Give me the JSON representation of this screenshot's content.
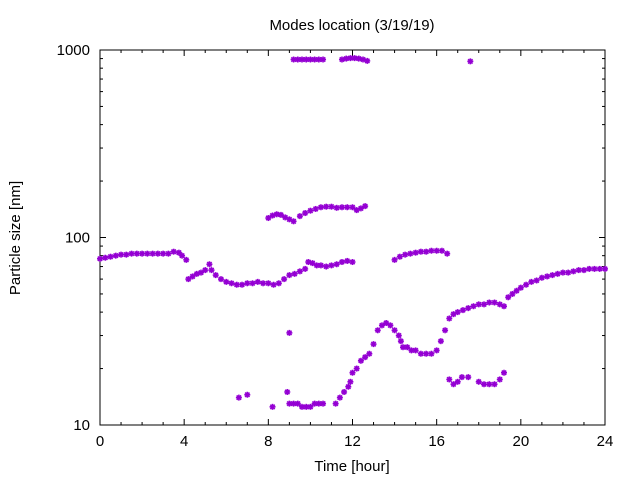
{
  "chart_data": {
    "type": "scatter",
    "title": "Modes location (3/19/19)",
    "xlabel": "Time [hour]",
    "ylabel": "Particle size [nm]",
    "xlim": [
      0,
      24
    ],
    "ylim": [
      10,
      1000
    ],
    "yscale": "log",
    "grid": false,
    "marker_color": "#9400d3",
    "x_ticks": [
      "0",
      "4",
      "8",
      "12",
      "16",
      "20",
      "24"
    ],
    "y_ticks": [
      "10",
      "100",
      "1000"
    ],
    "series": [
      {
        "points": [
          [
            0.0,
            77
          ],
          [
            0.25,
            78
          ],
          [
            0.5,
            79
          ],
          [
            0.75,
            80
          ],
          [
            1.0,
            81
          ],
          [
            1.25,
            81
          ],
          [
            1.5,
            82
          ],
          [
            1.75,
            82
          ],
          [
            2.0,
            82
          ],
          [
            2.25,
            82
          ],
          [
            2.5,
            82
          ],
          [
            2.75,
            82
          ],
          [
            3.0,
            82
          ],
          [
            3.25,
            82
          ],
          [
            3.5,
            84
          ],
          [
            3.75,
            83
          ],
          [
            3.9,
            80
          ],
          [
            4.1,
            76
          ],
          [
            4.2,
            60
          ],
          [
            4.4,
            62
          ],
          [
            4.6,
            64
          ],
          [
            4.8,
            65
          ],
          [
            5.0,
            67
          ],
          [
            5.2,
            72
          ],
          [
            5.3,
            67
          ],
          [
            5.5,
            63
          ],
          [
            5.75,
            60
          ],
          [
            6.0,
            58
          ],
          [
            6.25,
            57
          ],
          [
            6.5,
            56
          ],
          [
            6.75,
            56
          ],
          [
            7.0,
            57
          ],
          [
            7.25,
            57
          ],
          [
            7.5,
            58
          ],
          [
            7.75,
            57
          ],
          [
            8.0,
            57
          ],
          [
            8.25,
            56
          ],
          [
            8.5,
            57
          ],
          [
            8.75,
            60
          ],
          [
            9.0,
            63
          ],
          [
            9.25,
            64
          ],
          [
            9.5,
            66
          ],
          [
            9.75,
            68
          ],
          [
            9.9,
            74
          ],
          [
            10.1,
            73
          ],
          [
            10.3,
            71
          ],
          [
            10.5,
            71
          ],
          [
            10.75,
            70
          ],
          [
            11.0,
            71
          ],
          [
            11.25,
            72
          ],
          [
            11.5,
            74
          ],
          [
            11.75,
            75
          ],
          [
            12.0,
            74
          ],
          [
            8.0,
            127
          ],
          [
            8.2,
            131
          ],
          [
            8.4,
            133
          ],
          [
            8.6,
            132
          ],
          [
            8.8,
            128
          ],
          [
            9.0,
            125
          ],
          [
            9.2,
            122
          ],
          [
            9.5,
            130
          ],
          [
            9.75,
            135
          ],
          [
            10.0,
            139
          ],
          [
            10.25,
            142
          ],
          [
            10.5,
            145
          ],
          [
            10.75,
            146
          ],
          [
            11.0,
            146
          ],
          [
            11.25,
            144
          ],
          [
            11.5,
            145
          ],
          [
            11.75,
            145
          ],
          [
            12.0,
            145
          ],
          [
            12.2,
            140
          ],
          [
            12.4,
            143
          ],
          [
            12.6,
            147
          ],
          [
            9.2,
            890
          ],
          [
            9.4,
            890
          ],
          [
            9.6,
            890
          ],
          [
            9.8,
            890
          ],
          [
            10.0,
            890
          ],
          [
            10.2,
            890
          ],
          [
            10.4,
            890
          ],
          [
            10.6,
            890
          ],
          [
            11.5,
            890
          ],
          [
            11.7,
            900
          ],
          [
            11.9,
            905
          ],
          [
            12.1,
            905
          ],
          [
            12.3,
            900
          ],
          [
            12.5,
            890
          ],
          [
            12.7,
            875
          ],
          [
            17.6,
            870
          ],
          [
            14.0,
            76
          ],
          [
            14.25,
            79
          ],
          [
            14.5,
            81
          ],
          [
            14.75,
            82
          ],
          [
            15.0,
            83
          ],
          [
            15.25,
            84
          ],
          [
            15.5,
            84
          ],
          [
            15.75,
            85
          ],
          [
            16.0,
            85
          ],
          [
            16.25,
            85
          ],
          [
            16.5,
            82
          ],
          [
            6.6,
            14
          ],
          [
            7.0,
            14.5
          ],
          [
            8.2,
            12.5
          ],
          [
            8.9,
            15
          ],
          [
            9.0,
            31
          ],
          [
            9.0,
            13
          ],
          [
            9.2,
            13
          ],
          [
            9.4,
            13
          ],
          [
            9.6,
            12.5
          ],
          [
            9.8,
            12.5
          ],
          [
            10.0,
            12.5
          ],
          [
            10.2,
            13
          ],
          [
            10.4,
            13
          ],
          [
            10.6,
            13
          ],
          [
            11.2,
            13
          ],
          [
            11.4,
            14
          ],
          [
            11.6,
            15
          ],
          [
            11.8,
            16
          ],
          [
            11.9,
            17
          ],
          [
            12.0,
            19
          ],
          [
            12.2,
            20
          ],
          [
            12.4,
            22
          ],
          [
            12.6,
            23
          ],
          [
            12.8,
            24
          ],
          [
            13.0,
            27
          ],
          [
            13.2,
            32
          ],
          [
            13.4,
            34
          ],
          [
            13.6,
            35
          ],
          [
            13.8,
            34
          ],
          [
            14.0,
            32
          ],
          [
            14.2,
            30
          ],
          [
            14.3,
            28
          ],
          [
            14.4,
            26
          ],
          [
            14.6,
            26
          ],
          [
            14.8,
            25
          ],
          [
            15.0,
            25
          ],
          [
            15.25,
            24
          ],
          [
            15.5,
            24
          ],
          [
            15.75,
            24
          ],
          [
            16.0,
            25
          ],
          [
            16.2,
            28
          ],
          [
            16.4,
            32
          ],
          [
            16.6,
            37
          ],
          [
            16.8,
            39
          ],
          [
            17.0,
            40
          ],
          [
            17.25,
            41
          ],
          [
            17.5,
            42
          ],
          [
            17.75,
            43
          ],
          [
            18.0,
            44
          ],
          [
            18.25,
            44
          ],
          [
            18.5,
            45
          ],
          [
            18.75,
            45
          ],
          [
            19.0,
            44
          ],
          [
            19.2,
            43
          ],
          [
            16.6,
            17.5
          ],
          [
            16.8,
            16.5
          ],
          [
            17.0,
            17
          ],
          [
            17.2,
            18
          ],
          [
            17.5,
            18
          ],
          [
            18.0,
            17
          ],
          [
            18.25,
            16.5
          ],
          [
            18.5,
            16.5
          ],
          [
            18.75,
            16.5
          ],
          [
            19.0,
            17.5
          ],
          [
            19.2,
            19
          ],
          [
            19.4,
            48
          ],
          [
            19.6,
            50
          ],
          [
            19.8,
            52
          ],
          [
            20.0,
            54
          ],
          [
            20.25,
            56
          ],
          [
            20.5,
            58
          ],
          [
            20.75,
            59
          ],
          [
            21.0,
            61
          ],
          [
            21.25,
            62
          ],
          [
            21.5,
            63
          ],
          [
            21.75,
            64
          ],
          [
            22.0,
            65
          ],
          [
            22.25,
            65
          ],
          [
            22.5,
            66
          ],
          [
            22.75,
            67
          ],
          [
            23.0,
            67
          ],
          [
            23.25,
            68
          ],
          [
            23.5,
            68
          ],
          [
            23.75,
            68
          ],
          [
            24.0,
            68
          ]
        ]
      }
    ]
  }
}
